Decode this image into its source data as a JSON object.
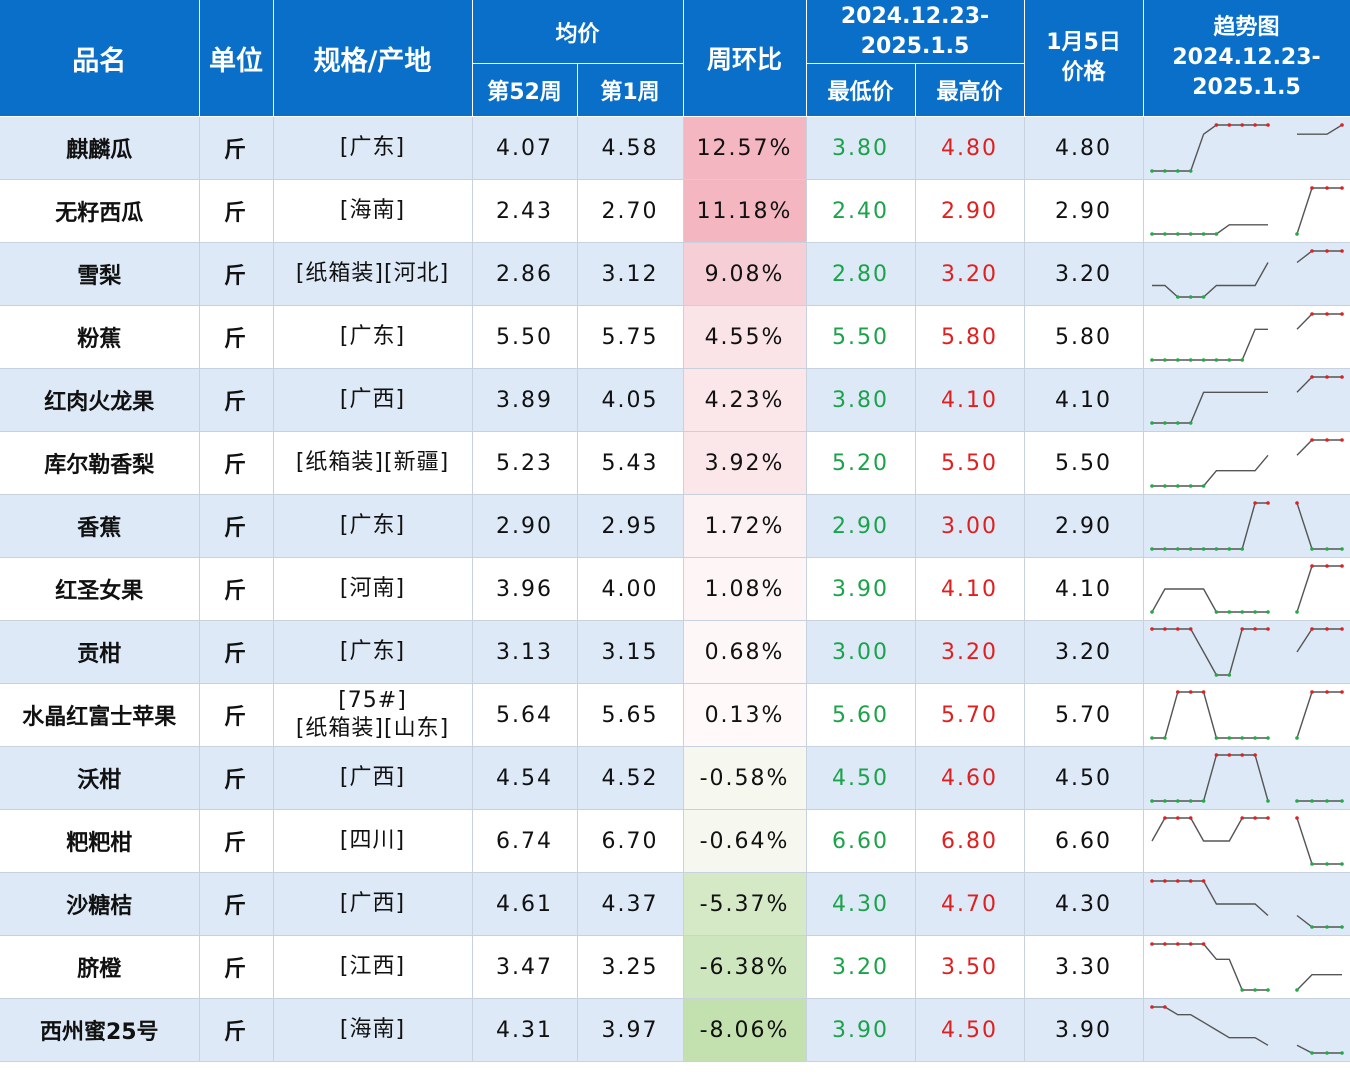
{
  "header": {
    "name": "品名",
    "unit": "单位",
    "spec": "规格/产地",
    "avg": "均价",
    "week52": "第52周",
    "week1": "第1周",
    "wow": "周环比",
    "range_line1": "2024.12.23-",
    "range_line2": "2025.1.5",
    "low": "最低价",
    "high": "最高价",
    "price_line1": "1月5日",
    "price_line2": "价格",
    "trend_line1": "趋势图",
    "trend_line2": "2024.12.23-",
    "trend_line3": "2025.1.5"
  },
  "colors": {
    "header_bg": "#0a6fc8",
    "low_text": "#1aa34a",
    "high_text": "#e02020",
    "trend_low_dot": "#22aa44",
    "trend_high_dot": "#dd2222"
  },
  "rows": [
    {
      "name": "麒麟瓜",
      "unit": "斤",
      "spec": "[广东]",
      "w52": "4.07",
      "w1": "4.58",
      "wow": "12.57%",
      "wow_value": 12.57,
      "low": "3.80",
      "high": "4.80",
      "price": "4.80",
      "trend_a": [
        3.8,
        3.8,
        3.8,
        3.8,
        4.6,
        4.8,
        4.8,
        4.8,
        4.8,
        4.8
      ],
      "trend_b": [
        4.6,
        4.6,
        4.6,
        4.8
      ]
    },
    {
      "name": "无籽西瓜",
      "unit": "斤",
      "spec": "[海南]",
      "w52": "2.43",
      "w1": "2.70",
      "wow": "11.18%",
      "wow_value": 11.18,
      "low": "2.40",
      "high": "2.90",
      "price": "2.90",
      "trend_a": [
        2.4,
        2.4,
        2.4,
        2.4,
        2.4,
        2.4,
        2.5,
        2.5,
        2.5,
        2.5
      ],
      "trend_b": [
        2.4,
        2.9,
        2.9,
        2.9
      ]
    },
    {
      "name": "雪梨",
      "unit": "斤",
      "spec": "[纸箱装][河北]",
      "w52": "2.86",
      "w1": "3.12",
      "wow": "9.08%",
      "wow_value": 9.08,
      "low": "2.80",
      "high": "3.20",
      "price": "3.20",
      "trend_a": [
        2.9,
        2.9,
        2.8,
        2.8,
        2.8,
        2.9,
        2.9,
        2.9,
        2.9,
        3.1
      ],
      "trend_b": [
        3.1,
        3.2,
        3.2,
        3.2
      ]
    },
    {
      "name": "粉蕉",
      "unit": "斤",
      "spec": "[广东]",
      "w52": "5.50",
      "w1": "5.75",
      "wow": "4.55%",
      "wow_value": 4.55,
      "low": "5.50",
      "high": "5.80",
      "price": "5.80",
      "trend_a": [
        5.5,
        5.5,
        5.5,
        5.5,
        5.5,
        5.5,
        5.5,
        5.5,
        5.7,
        5.7
      ],
      "trend_b": [
        5.7,
        5.8,
        5.8,
        5.8
      ]
    },
    {
      "name": "红肉火龙果",
      "unit": "斤",
      "spec": "[广西]",
      "w52": "3.89",
      "w1": "4.05",
      "wow": "4.23%",
      "wow_value": 4.23,
      "low": "3.80",
      "high": "4.10",
      "price": "4.10",
      "trend_a": [
        3.8,
        3.8,
        3.8,
        3.8,
        4.0,
        4.0,
        4.0,
        4.0,
        4.0,
        4.0
      ],
      "trend_b": [
        4.0,
        4.1,
        4.1,
        4.1
      ]
    },
    {
      "name": "库尔勒香梨",
      "unit": "斤",
      "spec": "[纸箱装][新疆]",
      "w52": "5.23",
      "w1": "5.43",
      "wow": "3.92%",
      "wow_value": 3.92,
      "low": "5.20",
      "high": "5.50",
      "price": "5.50",
      "trend_a": [
        5.2,
        5.2,
        5.2,
        5.2,
        5.2,
        5.3,
        5.3,
        5.3,
        5.3,
        5.4
      ],
      "trend_b": [
        5.4,
        5.5,
        5.5,
        5.5
      ]
    },
    {
      "name": "香蕉",
      "unit": "斤",
      "spec": "[广东]",
      "w52": "2.90",
      "w1": "2.95",
      "wow": "1.72%",
      "wow_value": 1.72,
      "low": "2.90",
      "high": "3.00",
      "price": "2.90",
      "trend_a": [
        2.9,
        2.9,
        2.9,
        2.9,
        2.9,
        2.9,
        2.9,
        2.9,
        3.0,
        3.0
      ],
      "trend_b": [
        3.0,
        2.9,
        2.9,
        2.9
      ]
    },
    {
      "name": "红圣女果",
      "unit": "斤",
      "spec": "[河南]",
      "w52": "3.96",
      "w1": "4.00",
      "wow": "1.08%",
      "wow_value": 1.08,
      "low": "3.90",
      "high": "4.10",
      "price": "4.10",
      "trend_a": [
        3.9,
        4.0,
        4.0,
        4.0,
        4.0,
        3.9,
        3.9,
        3.9,
        3.9,
        3.9
      ],
      "trend_b": [
        3.9,
        4.1,
        4.1,
        4.1
      ]
    },
    {
      "name": "贡柑",
      "unit": "斤",
      "spec": "[广东]",
      "w52": "3.13",
      "w1": "3.15",
      "wow": "0.68%",
      "wow_value": 0.68,
      "low": "3.00",
      "high": "3.20",
      "price": "3.20",
      "trend_a": [
        3.2,
        3.2,
        3.2,
        3.2,
        3.1,
        3.0,
        3.0,
        3.2,
        3.2,
        3.2
      ],
      "trend_b": [
        3.1,
        3.2,
        3.2,
        3.2
      ]
    },
    {
      "name": "水晶红富士苹果",
      "unit": "斤",
      "spec": "[75#]",
      "spec2": "[纸箱装][山东]",
      "w52": "5.64",
      "w1": "5.65",
      "wow": "0.13%",
      "wow_value": 0.13,
      "low": "5.60",
      "high": "5.70",
      "price": "5.70",
      "trend_a": [
        5.6,
        5.6,
        5.7,
        5.7,
        5.7,
        5.6,
        5.6,
        5.6,
        5.6,
        5.6
      ],
      "trend_b": [
        5.6,
        5.7,
        5.7,
        5.7
      ]
    },
    {
      "name": "沃柑",
      "unit": "斤",
      "spec": "[广西]",
      "w52": "4.54",
      "w1": "4.52",
      "wow": "-0.58%",
      "wow_value": -0.58,
      "low": "4.50",
      "high": "4.60",
      "price": "4.50",
      "trend_a": [
        4.5,
        4.5,
        4.5,
        4.5,
        4.5,
        4.6,
        4.6,
        4.6,
        4.6,
        4.5
      ],
      "trend_b": [
        4.5,
        4.5,
        4.5,
        4.5
      ]
    },
    {
      "name": "粑粑柑",
      "unit": "斤",
      "spec": "[四川]",
      "w52": "6.74",
      "w1": "6.70",
      "wow": "-0.64%",
      "wow_value": -0.64,
      "low": "6.60",
      "high": "6.80",
      "price": "6.60",
      "trend_a": [
        6.7,
        6.8,
        6.8,
        6.8,
        6.7,
        6.7,
        6.7,
        6.8,
        6.8,
        6.8
      ],
      "trend_b": [
        6.8,
        6.6,
        6.6,
        6.6
      ]
    },
    {
      "name": "沙糖桔",
      "unit": "斤",
      "spec": "[广西]",
      "w52": "4.61",
      "w1": "4.37",
      "wow": "-5.37%",
      "wow_value": -5.37,
      "low": "4.30",
      "high": "4.70",
      "price": "4.30",
      "trend_a": [
        4.7,
        4.7,
        4.7,
        4.7,
        4.7,
        4.5,
        4.5,
        4.5,
        4.5,
        4.4
      ],
      "trend_b": [
        4.4,
        4.3,
        4.3,
        4.3
      ]
    },
    {
      "name": "脐橙",
      "unit": "斤",
      "spec": "[江西]",
      "w52": "3.47",
      "w1": "3.25",
      "wow": "-6.38%",
      "wow_value": -6.38,
      "low": "3.20",
      "high": "3.50",
      "price": "3.30",
      "trend_a": [
        3.5,
        3.5,
        3.5,
        3.5,
        3.5,
        3.4,
        3.4,
        3.2,
        3.2,
        3.2
      ],
      "trend_b": [
        3.2,
        3.3,
        3.3,
        3.3
      ]
    },
    {
      "name": "西州蜜25号",
      "unit": "斤",
      "spec": "[海南]",
      "w52": "4.31",
      "w1": "3.97",
      "wow": "-8.06%",
      "wow_value": -8.06,
      "low": "3.90",
      "high": "4.50",
      "price": "3.90",
      "trend_a": [
        4.5,
        4.5,
        4.4,
        4.4,
        4.3,
        4.2,
        4.1,
        4.1,
        4.1,
        4.0
      ],
      "trend_b": [
        4.0,
        3.9,
        3.9,
        3.9
      ]
    }
  ]
}
